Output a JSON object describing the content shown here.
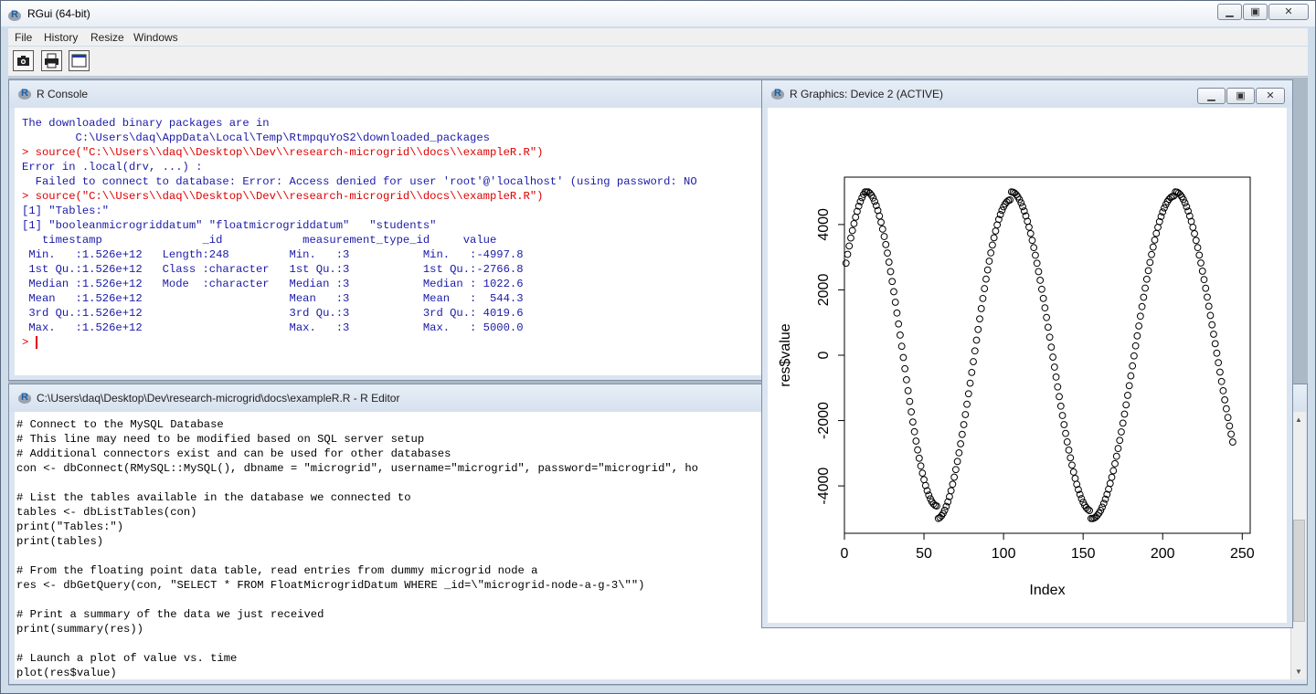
{
  "app": {
    "title": "RGui (64-bit)"
  },
  "menu": [
    "File",
    "History",
    "Resize",
    "Windows"
  ],
  "toolbar": [
    "camera-icon",
    "printer-icon",
    "window-icon"
  ],
  "console": {
    "title": "R Console",
    "lines": [
      {
        "text": "The downloaded binary packages are in",
        "kind": "output"
      },
      {
        "text": "        C:\\Users\\daq\\AppData\\Local\\Temp\\RtmpquYoS2\\downloaded_packages",
        "kind": "output"
      },
      {
        "text": "> source(\"C:\\\\Users\\\\daq\\\\Desktop\\\\Dev\\\\research-microgrid\\\\docs\\\\exampleR.R\")",
        "kind": "input"
      },
      {
        "text": "Error in .local(drv, ...) :",
        "kind": "output"
      },
      {
        "text": "  Failed to connect to database: Error: Access denied for user 'root'@'localhost' (using password: NO",
        "kind": "output"
      },
      {
        "text": "> source(\"C:\\\\Users\\\\daq\\\\Desktop\\\\Dev\\\\research-microgrid\\\\docs\\\\exampleR.R\")",
        "kind": "input"
      },
      {
        "text": "[1] \"Tables:\"",
        "kind": "output"
      },
      {
        "text": "[1] \"booleanmicrogriddatum\" \"floatmicrogriddatum\"   \"students\"",
        "kind": "output"
      },
      {
        "text": "   timestamp               _id            measurement_type_id     value",
        "kind": "output"
      },
      {
        "text": " Min.   :1.526e+12   Length:248         Min.   :3           Min.   :-4997.8",
        "kind": "output"
      },
      {
        "text": " 1st Qu.:1.526e+12   Class :character   1st Qu.:3           1st Qu.:-2766.8",
        "kind": "output"
      },
      {
        "text": " Median :1.526e+12   Mode  :character   Median :3           Median : 1022.6",
        "kind": "output"
      },
      {
        "text": " Mean   :1.526e+12                      Mean   :3           Mean   :  544.3",
        "kind": "output"
      },
      {
        "text": " 3rd Qu.:1.526e+12                      3rd Qu.:3           3rd Qu.: 4019.6",
        "kind": "output"
      },
      {
        "text": " Max.   :1.526e+12                      Max.   :3           Max.   : 5000.0",
        "kind": "output"
      }
    ],
    "prompt": "> "
  },
  "editor": {
    "title": "C:\\Users\\daq\\Desktop\\Dev\\research-microgrid\\docs\\exampleR.R - R Editor",
    "lines": [
      "# Connect to the MySQL Database",
      "# This line may need to be modified based on SQL server setup",
      "# Additional connectors exist and can be used for other databases",
      "con <- dbConnect(RMySQL::MySQL(), dbname = \"microgrid\", username=\"microgrid\", password=\"microgrid\", ho",
      "",
      "# List the tables available in the database we connected to",
      "tables <- dbListTables(con)",
      "print(\"Tables:\")",
      "print(tables)",
      "",
      "# From the floating point data table, read entries from dummy microgrid node a",
      "res <- dbGetQuery(con, \"SELECT * FROM FloatMicrogridDatum WHERE _id=\\\"microgrid-node-a-g-3\\\"\")",
      "",
      "# Print a summary of the data we just received",
      "print(summary(res))",
      "",
      "# Launch a plot of value vs. time",
      "plot(res$value)"
    ]
  },
  "graphics": {
    "title": "R Graphics: Device 2 (ACTIVE)"
  },
  "chart_data": {
    "type": "scatter",
    "title": "",
    "xlabel": "Index",
    "ylabel": "res$value",
    "xlim": [
      1,
      248
    ],
    "ylim": [
      -5000,
      5000
    ],
    "xticks": [
      "0",
      "50",
      "100",
      "150",
      "200",
      "250"
    ],
    "yticks": [
      "-4000",
      "-2000",
      "0",
      "2000",
      "4000"
    ],
    "n_points": 248,
    "formula": "value = 5000*sin(2*pi*(x+7)/99)",
    "series": [
      {
        "values": [
          2817,
          3087,
          3344,
          3588,
          3816,
          4029,
          4225,
          4403,
          4562,
          4702,
          4822,
          4921,
          4998,
          5000,
          4997,
          4958,
          4897,
          4813,
          4707,
          4580,
          4430,
          4260,
          4070,
          3860,
          3632,
          3387,
          3126,
          2849,
          2559,
          2257,
          1944,
          1622,
          1292,
          957,
          617,
          274,
          -70,
          -412,
          -752,
          -1086,
          -1414,
          -1734,
          -2044,
          -2342,
          -2627,
          -2898,
          -3153,
          -3390,
          -3609,
          -3809,
          -3988,
          -4146,
          -4282,
          -4396,
          -4486,
          -4553,
          -4596,
          -4614,
          -4997,
          -4968,
          -4916,
          -4842,
          -4746,
          -4627,
          -4488,
          -4328,
          -4148,
          -3949,
          -3733,
          -3500,
          -3251,
          -2988,
          -2711,
          -2423,
          -2124,
          -1816,
          -1501,
          -1180,
          -855,
          -527,
          -198,
          132,
          461,
          788,
          1111,
          1427,
          1737,
          2038,
          2330,
          2610,
          2878,
          3133,
          3372,
          3595,
          3801,
          3989,
          4157,
          4306,
          4435,
          4542,
          4628,
          4692,
          4734,
          4753,
          5000,
          4989,
          4960,
          4912,
          4847,
          4764,
          4664,
          4547,
          4414,
          4264,
          4099,
          3919,
          3724,
          3515,
          3294,
          3060,
          2815,
          2559,
          2294,
          2020,
          1738,
          1449,
          1155,
          856,
          553,
          248,
          -58,
          -364,
          -668,
          -970,
          -1267,
          -1559,
          -1845,
          -2124,
          -2394,
          -2654,
          -2903,
          -3140,
          -3364,
          -3575,
          -3770,
          -3950,
          -4114,
          -4261,
          -4390,
          -4501,
          -4593,
          -4666,
          -4720,
          -4754,
          -4997,
          -4998,
          -4982,
          -4949,
          -4899,
          -4833,
          -4750,
          -4651,
          -4536,
          -4406,
          -4260,
          -4100,
          -3925,
          -3736,
          -3534,
          -3320,
          -3093,
          -2855,
          -2606,
          -2347,
          -2079,
          -1803,
          -1519,
          -1228,
          -932,
          -631,
          -327,
          -20,
          287,
          592,
          895,
          1194,
          1487,
          1775,
          2055,
          2327,
          2589,
          2841,
          3082,
          3310,
          3526,
          3728,
          3915,
          4088,
          4244,
          4384,
          4507,
          4613,
          4701,
          4772,
          4824,
          4858,
          4874,
          5000,
          4991,
          4962,
          4915,
          4849,
          4765,
          4664,
          4546,
          4411,
          4260,
          4094,
          3914,
          3720,
          3513,
          3294,
          3064,
          2823,
          2573,
          2315,
          2049,
          1777,
          1499,
          1217,
          931,
          643,
          353,
          63,
          -228,
          -517,
          -804,
          -1087,
          -1366,
          -1639,
          -1906,
          -2165,
          -2416,
          -2657
        ]
      }
    ]
  }
}
